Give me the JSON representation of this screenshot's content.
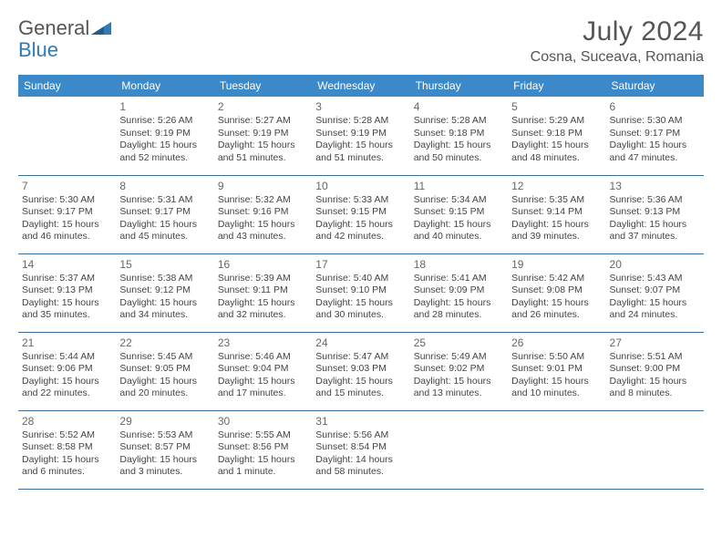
{
  "brand": {
    "part1": "General",
    "part2": "Blue"
  },
  "title": "July 2024",
  "location": "Cosna, Suceava, Romania",
  "colors": {
    "header_bg": "#3b89c9",
    "header_text": "#ffffff",
    "cell_border": "#3b6d9a",
    "brand_blue": "#2e7bba",
    "text": "#444444",
    "background": "#ffffff"
  },
  "weekdays": [
    "Sunday",
    "Monday",
    "Tuesday",
    "Wednesday",
    "Thursday",
    "Friday",
    "Saturday"
  ],
  "weeks": [
    [
      null,
      {
        "n": "1",
        "sr": "5:26 AM",
        "ss": "9:19 PM",
        "dl": "15 hours and 52 minutes."
      },
      {
        "n": "2",
        "sr": "5:27 AM",
        "ss": "9:19 PM",
        "dl": "15 hours and 51 minutes."
      },
      {
        "n": "3",
        "sr": "5:28 AM",
        "ss": "9:19 PM",
        "dl": "15 hours and 51 minutes."
      },
      {
        "n": "4",
        "sr": "5:28 AM",
        "ss": "9:18 PM",
        "dl": "15 hours and 50 minutes."
      },
      {
        "n": "5",
        "sr": "5:29 AM",
        "ss": "9:18 PM",
        "dl": "15 hours and 48 minutes."
      },
      {
        "n": "6",
        "sr": "5:30 AM",
        "ss": "9:17 PM",
        "dl": "15 hours and 47 minutes."
      }
    ],
    [
      {
        "n": "7",
        "sr": "5:30 AM",
        "ss": "9:17 PM",
        "dl": "15 hours and 46 minutes."
      },
      {
        "n": "8",
        "sr": "5:31 AM",
        "ss": "9:17 PM",
        "dl": "15 hours and 45 minutes."
      },
      {
        "n": "9",
        "sr": "5:32 AM",
        "ss": "9:16 PM",
        "dl": "15 hours and 43 minutes."
      },
      {
        "n": "10",
        "sr": "5:33 AM",
        "ss": "9:15 PM",
        "dl": "15 hours and 42 minutes."
      },
      {
        "n": "11",
        "sr": "5:34 AM",
        "ss": "9:15 PM",
        "dl": "15 hours and 40 minutes."
      },
      {
        "n": "12",
        "sr": "5:35 AM",
        "ss": "9:14 PM",
        "dl": "15 hours and 39 minutes."
      },
      {
        "n": "13",
        "sr": "5:36 AM",
        "ss": "9:13 PM",
        "dl": "15 hours and 37 minutes."
      }
    ],
    [
      {
        "n": "14",
        "sr": "5:37 AM",
        "ss": "9:13 PM",
        "dl": "15 hours and 35 minutes."
      },
      {
        "n": "15",
        "sr": "5:38 AM",
        "ss": "9:12 PM",
        "dl": "15 hours and 34 minutes."
      },
      {
        "n": "16",
        "sr": "5:39 AM",
        "ss": "9:11 PM",
        "dl": "15 hours and 32 minutes."
      },
      {
        "n": "17",
        "sr": "5:40 AM",
        "ss": "9:10 PM",
        "dl": "15 hours and 30 minutes."
      },
      {
        "n": "18",
        "sr": "5:41 AM",
        "ss": "9:09 PM",
        "dl": "15 hours and 28 minutes."
      },
      {
        "n": "19",
        "sr": "5:42 AM",
        "ss": "9:08 PM",
        "dl": "15 hours and 26 minutes."
      },
      {
        "n": "20",
        "sr": "5:43 AM",
        "ss": "9:07 PM",
        "dl": "15 hours and 24 minutes."
      }
    ],
    [
      {
        "n": "21",
        "sr": "5:44 AM",
        "ss": "9:06 PM",
        "dl": "15 hours and 22 minutes."
      },
      {
        "n": "22",
        "sr": "5:45 AM",
        "ss": "9:05 PM",
        "dl": "15 hours and 20 minutes."
      },
      {
        "n": "23",
        "sr": "5:46 AM",
        "ss": "9:04 PM",
        "dl": "15 hours and 17 minutes."
      },
      {
        "n": "24",
        "sr": "5:47 AM",
        "ss": "9:03 PM",
        "dl": "15 hours and 15 minutes."
      },
      {
        "n": "25",
        "sr": "5:49 AM",
        "ss": "9:02 PM",
        "dl": "15 hours and 13 minutes."
      },
      {
        "n": "26",
        "sr": "5:50 AM",
        "ss": "9:01 PM",
        "dl": "15 hours and 10 minutes."
      },
      {
        "n": "27",
        "sr": "5:51 AM",
        "ss": "9:00 PM",
        "dl": "15 hours and 8 minutes."
      }
    ],
    [
      {
        "n": "28",
        "sr": "5:52 AM",
        "ss": "8:58 PM",
        "dl": "15 hours and 6 minutes."
      },
      {
        "n": "29",
        "sr": "5:53 AM",
        "ss": "8:57 PM",
        "dl": "15 hours and 3 minutes."
      },
      {
        "n": "30",
        "sr": "5:55 AM",
        "ss": "8:56 PM",
        "dl": "15 hours and 1 minute."
      },
      {
        "n": "31",
        "sr": "5:56 AM",
        "ss": "8:54 PM",
        "dl": "14 hours and 58 minutes."
      },
      null,
      null,
      null
    ]
  ],
  "labels": {
    "sunrise": "Sunrise:",
    "sunset": "Sunset:",
    "daylight": "Daylight:"
  }
}
